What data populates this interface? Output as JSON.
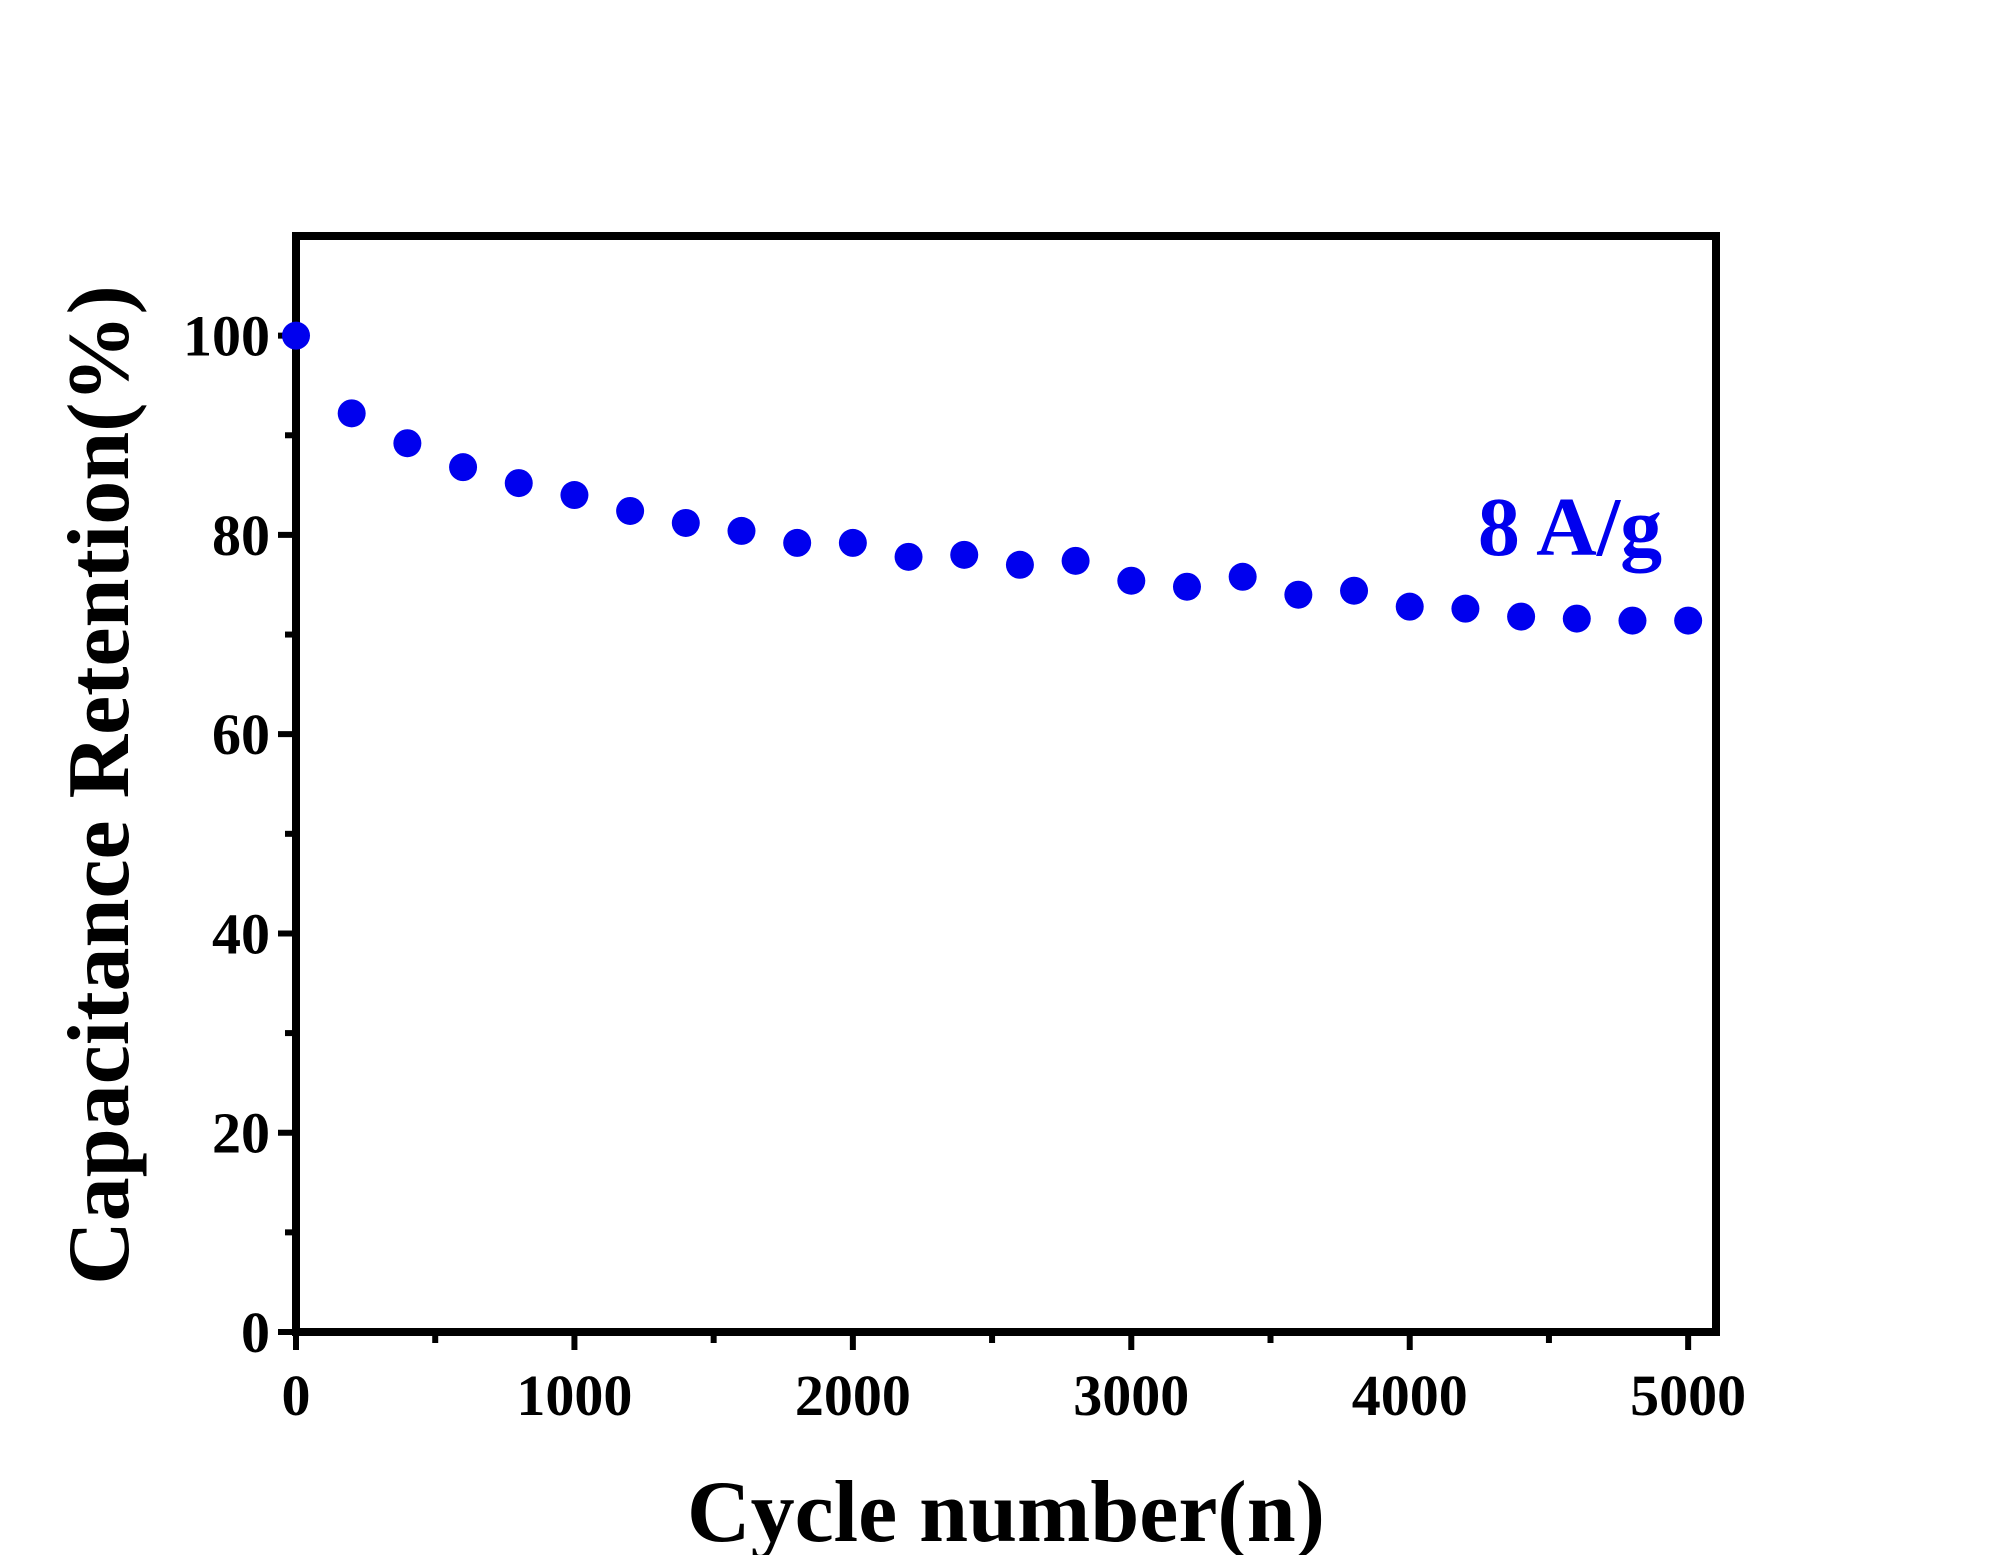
{
  "chart_data": {
    "type": "scatter",
    "title": "",
    "xlabel": "Cycle number(n)",
    "ylabel": "Capacitance Retention(%)",
    "xlim": [
      0,
      5100
    ],
    "ylim": [
      0,
      110
    ],
    "x_ticks": [
      "0",
      "1000",
      "2000",
      "3000",
      "4000",
      "5000"
    ],
    "x_tick_values": [
      0,
      1000,
      2000,
      3000,
      4000,
      5000
    ],
    "y_ticks": [
      "0",
      "20",
      "40",
      "60",
      "80",
      "100"
    ],
    "y_tick_values": [
      0,
      20,
      40,
      60,
      80,
      100
    ],
    "grid": false,
    "legend": "none",
    "marker_color": "#0000ee",
    "annotation": {
      "text": "8 A/g",
      "color": "#0000ee"
    },
    "series": [
      {
        "x": [
          0,
          200,
          400,
          600,
          800,
          1000,
          1200,
          1400,
          1600,
          1800,
          2000,
          2200,
          2400,
          2600,
          2800,
          3000,
          3200,
          3400,
          3600,
          3800,
          4000,
          4200,
          4400,
          4600,
          4800,
          5000
        ],
        "y": [
          100,
          92.2,
          89.2,
          86.8,
          85.2,
          84.0,
          82.4,
          81.2,
          80.4,
          79.2,
          79.2,
          77.8,
          78.0,
          77.0,
          77.4,
          75.4,
          74.8,
          75.8,
          74.0,
          74.4,
          72.8,
          72.6,
          71.8,
          71.6,
          71.4,
          71.4
        ]
      }
    ]
  }
}
